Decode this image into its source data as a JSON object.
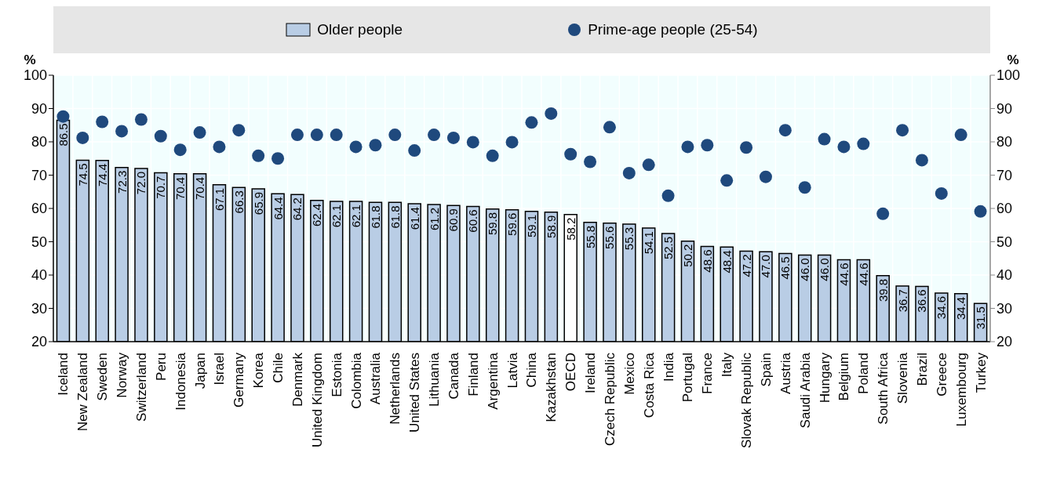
{
  "chart_data": {
    "type": "bar",
    "categories": [
      "Iceland",
      "New Zealand",
      "Sweden",
      "Norway",
      "Switzerland",
      "Peru",
      "Indonesia",
      "Japan",
      "Israel",
      "Germany",
      "Korea",
      "Chile",
      "Denmark",
      "United Kingdom",
      "Estonia",
      "Colombia",
      "Australia",
      "Netherlands",
      "United States",
      "Lithuania",
      "Canada",
      "Finland",
      "Argentina",
      "Latvia",
      "China",
      "Kazakhstan",
      "OECD",
      "Ireland",
      "Czech Republic",
      "Mexico",
      "Costa Rica",
      "India",
      "Portugal",
      "France",
      "Italy",
      "Slovak Republic",
      "Spain",
      "Austria",
      "Saudi Arabia",
      "Hungary",
      "Belgium",
      "Poland",
      "South Africa",
      "Slovenia",
      "Brazil",
      "Greece",
      "Luxembourg",
      "Turkey"
    ],
    "series": [
      {
        "name": "Older people",
        "color": "#b9cde5",
        "colors": [
          "#b9cde5",
          "#b9cde5",
          "#b9cde5",
          "#b9cde5",
          "#b9cde5",
          "#b9cde5",
          "#b9cde5",
          "#b9cde5",
          "#b9cde5",
          "#b9cde5",
          "#b9cde5",
          "#b9cde5",
          "#b9cde5",
          "#b9cde5",
          "#b9cde5",
          "#b9cde5",
          "#b9cde5",
          "#b9cde5",
          "#b9cde5",
          "#b9cde5",
          "#b9cde5",
          "#b9cde5",
          "#b9cde5",
          "#b9cde5",
          "#b9cde5",
          "#b9cde5",
          "#ffffff",
          "#b9cde5",
          "#b9cde5",
          "#b9cde5",
          "#b9cde5",
          "#b9cde5",
          "#b9cde5",
          "#b9cde5",
          "#b9cde5",
          "#b9cde5",
          "#b9cde5",
          "#b9cde5",
          "#b9cde5",
          "#b9cde5",
          "#b9cde5",
          "#b9cde5",
          "#b9cde5",
          "#b9cde5",
          "#b9cde5",
          "#b9cde5",
          "#b9cde5",
          "#b9cde5"
        ],
        "values": [
          86.5,
          74.5,
          74.4,
          72.3,
          72.0,
          70.7,
          70.4,
          70.4,
          67.1,
          66.3,
          65.9,
          64.4,
          64.2,
          62.4,
          62.1,
          62.1,
          61.8,
          61.8,
          61.4,
          61.2,
          60.9,
          60.6,
          59.8,
          59.6,
          59.1,
          58.9,
          58.2,
          55.8,
          55.6,
          55.3,
          54.1,
          52.5,
          50.2,
          48.6,
          48.4,
          47.2,
          47.0,
          46.5,
          46.0,
          46.0,
          44.6,
          44.6,
          39.8,
          36.7,
          36.6,
          34.6,
          34.4,
          31.5
        ],
        "value_labels": [
          "86.5",
          "74.5",
          "74.4",
          "72.3",
          "72.0",
          "70.7",
          "70.4",
          "70.4",
          "67.1",
          "66.3",
          "65.9",
          "64.4",
          "64.2",
          "62.4",
          "62.1",
          "62.1",
          "61.8",
          "61.8",
          "61.4",
          "61.2",
          "60.9",
          "60.6",
          "59.8",
          "59.6",
          "59.1",
          "58.9",
          "58.2",
          "55.8",
          "55.6",
          "55.3",
          "54.1",
          "52.5",
          "50.2",
          "48.6",
          "48.4",
          "47.2",
          "47.0",
          "46.5",
          "46.0",
          "46.0",
          "44.6",
          "44.6",
          "39.8",
          "36.7",
          "36.6",
          "34.6",
          "34.4",
          "31.5"
        ]
      },
      {
        "name": "Prime-age people (25-54)",
        "type": "scatter",
        "color": "#1f497d",
        "marker": "circle",
        "values": [
          87.6,
          81.2,
          86.0,
          83.2,
          86.7,
          81.7,
          77.6,
          82.8,
          78.5,
          83.5,
          75.8,
          75.0,
          82.1,
          82.1,
          82.1,
          78.5,
          79.0,
          82.1,
          77.4,
          82.1,
          81.2,
          79.9,
          75.8,
          79.9,
          85.8,
          88.5,
          76.3,
          74.0,
          84.4,
          70.6,
          73.1,
          63.8,
          78.5,
          79.0,
          68.4,
          78.3,
          69.5,
          83.5,
          66.3,
          80.8,
          78.5,
          79.4,
          58.4,
          83.5,
          74.5,
          64.5,
          82.1,
          59.1
        ]
      }
    ],
    "ylabel": "%",
    "y2label": "%",
    "ylim": [
      20,
      100
    ],
    "yticks": [
      20,
      30,
      40,
      50,
      60,
      70,
      80,
      90,
      100
    ],
    "y2lim": [
      20,
      100
    ],
    "y2ticks": [
      20,
      30,
      40,
      50,
      60,
      70,
      80,
      90,
      100
    ],
    "grid": true,
    "legend": "top"
  }
}
